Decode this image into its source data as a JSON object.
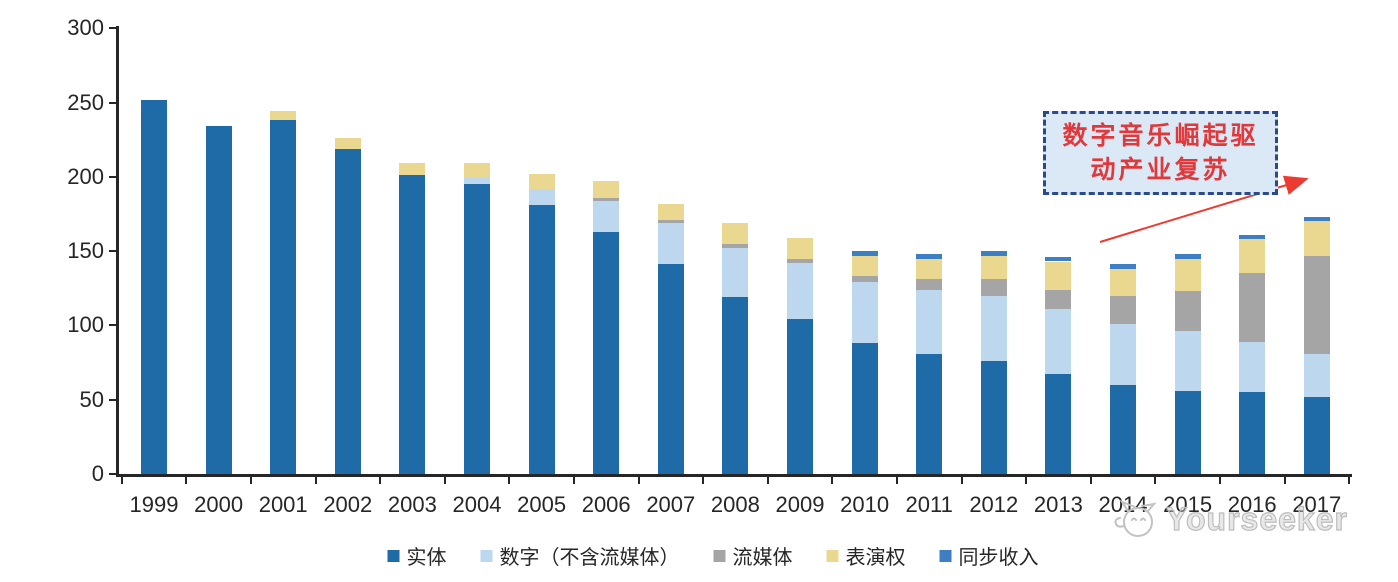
{
  "chart_data": {
    "type": "bar",
    "stacked": true,
    "grid": false,
    "legend_position": "bottom",
    "ylim": [
      0,
      300
    ],
    "yticks": [
      0,
      50,
      100,
      150,
      200,
      250,
      300
    ],
    "categories": [
      "1999",
      "2000",
      "2001",
      "2002",
      "2003",
      "2004",
      "2005",
      "2006",
      "2007",
      "2008",
      "2009",
      "2010",
      "2011",
      "2012",
      "2013",
      "2014",
      "2015",
      "2016",
      "2017"
    ],
    "series": [
      {
        "name": "实体",
        "color": "#1E6BA8",
        "values": [
          252,
          234,
          238,
          219,
          201,
          195,
          181,
          163,
          141,
          119,
          104,
          88,
          81,
          76,
          67,
          60,
          56,
          55,
          52
        ]
      },
      {
        "name": "数字（不含流媒体）",
        "color": "#BDD7EE",
        "values": [
          0,
          0,
          0,
          0,
          0,
          4,
          11,
          21,
          28,
          33,
          38,
          41,
          43,
          44,
          44,
          41,
          40,
          34,
          29
        ]
      },
      {
        "name": "流媒体",
        "color": "#A5A5A5",
        "values": [
          0,
          0,
          0,
          0,
          0,
          0,
          0,
          2,
          2,
          3,
          3,
          4,
          7,
          11,
          13,
          19,
          27,
          46,
          66
        ]
      },
      {
        "name": "表演权",
        "color": "#EAD790",
        "values": [
          0,
          0,
          6,
          7,
          8,
          10,
          10,
          11,
          11,
          14,
          14,
          14,
          14,
          16,
          19,
          18,
          22,
          23,
          23
        ]
      },
      {
        "name": "同步收入",
        "color": "#3E7EC3",
        "values": [
          0,
          0,
          0,
          0,
          0,
          0,
          0,
          0,
          0,
          0,
          0,
          3,
          3,
          3,
          3,
          3,
          3,
          3,
          3
        ]
      }
    ]
  },
  "annotation": {
    "line1": "数字音乐崛起驱",
    "line2": "动产业复苏",
    "box_fill": "#DBE8F6",
    "border_color": "#2B4A8B",
    "text_color": "#E0393B",
    "arrow_color": "#EC3B31"
  },
  "watermark": {
    "text": "Yourseeker",
    "color": "#BDBDBD"
  },
  "axis_color": "#262626"
}
